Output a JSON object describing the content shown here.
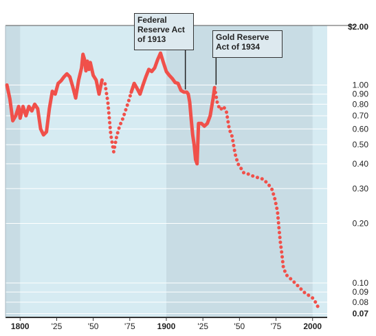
{
  "chart_data": {
    "type": "line",
    "title": "",
    "xlabel": "",
    "ylabel": "",
    "y_scale": "log",
    "x_range": [
      1790,
      2010
    ],
    "y_range": [
      0.067,
      2.0
    ],
    "x_ticks": [
      {
        "value": 1800,
        "label": "1800",
        "major": true
      },
      {
        "value": 1825,
        "label": "'25",
        "major": false
      },
      {
        "value": 1850,
        "label": "'50",
        "major": false
      },
      {
        "value": 1875,
        "label": "'75",
        "major": false
      },
      {
        "value": 1900,
        "label": "1900",
        "major": true
      },
      {
        "value": 1925,
        "label": "'25",
        "major": false
      },
      {
        "value": 1950,
        "label": "'50",
        "major": false
      },
      {
        "value": 1975,
        "label": "'75",
        "major": false
      },
      {
        "value": 2000,
        "label": "2000",
        "major": true
      }
    ],
    "y_ticks": [
      {
        "value": 2.0,
        "label": "$2.00",
        "bold": true
      },
      {
        "value": 1.0,
        "label": "1.00"
      },
      {
        "value": 0.9,
        "label": "0.90"
      },
      {
        "value": 0.8,
        "label": "0.80"
      },
      {
        "value": 0.7,
        "label": "0.70"
      },
      {
        "value": 0.6,
        "label": "0.60"
      },
      {
        "value": 0.5,
        "label": "0.50"
      },
      {
        "value": 0.4,
        "label": "0.40"
      },
      {
        "value": 0.3,
        "label": "0.30"
      },
      {
        "value": 0.2,
        "label": "0.20"
      },
      {
        "value": 0.1,
        "label": "0.10"
      },
      {
        "value": 0.09,
        "label": "0.09"
      },
      {
        "value": 0.08,
        "label": "0.08"
      },
      {
        "value": 0.07,
        "label": "0.07",
        "bold": true
      }
    ],
    "shaded_periods": [
      {
        "start": 1790,
        "end": 1800
      },
      {
        "start": 1900,
        "end": 2000
      }
    ],
    "annotations": [
      {
        "id": "fed",
        "text": "Federal\nReserve Act\nof 1913",
        "year": 1913
      },
      {
        "id": "gold",
        "text": "Gold Reserve\nAct of 1934",
        "year": 1934
      }
    ],
    "colors": {
      "line": "#f0504a",
      "light_bg": "#d6ebf2",
      "shade_bg": "#c8dce4",
      "grid": "#ffffff"
    },
    "series": [
      {
        "style": "solid",
        "points": [
          [
            1791,
            1.0
          ],
          [
            1793,
            0.85
          ],
          [
            1795,
            0.66
          ],
          [
            1797,
            0.7
          ],
          [
            1799,
            0.78
          ],
          [
            1800,
            0.68
          ],
          [
            1802,
            0.78
          ],
          [
            1804,
            0.7
          ],
          [
            1806,
            0.78
          ],
          [
            1808,
            0.74
          ],
          [
            1810,
            0.8
          ],
          [
            1812,
            0.76
          ],
          [
            1814,
            0.6
          ],
          [
            1816,
            0.56
          ],
          [
            1818,
            0.58
          ],
          [
            1820,
            0.76
          ],
          [
            1822,
            0.93
          ],
          [
            1824,
            0.9
          ],
          [
            1826,
            1.02
          ],
          [
            1828,
            1.05
          ],
          [
            1830,
            1.1
          ],
          [
            1832,
            1.14
          ],
          [
            1834,
            1.1
          ],
          [
            1836,
            0.98
          ],
          [
            1838,
            0.86
          ],
          [
            1840,
            1.06
          ],
          [
            1842,
            1.22
          ],
          [
            1843,
            1.43
          ],
          [
            1844,
            1.35
          ],
          [
            1845,
            1.18
          ],
          [
            1846,
            1.32
          ],
          [
            1847,
            1.2
          ],
          [
            1848,
            1.3
          ],
          [
            1850,
            1.12
          ],
          [
            1852,
            1.06
          ],
          [
            1854,
            0.9
          ],
          [
            1856,
            1.06
          ]
        ]
      },
      {
        "style": "dotted",
        "points": [
          [
            1856,
            1.06
          ],
          [
            1858,
            1.02
          ],
          [
            1860,
            0.82
          ],
          [
            1862,
            0.56
          ],
          [
            1864,
            0.46
          ],
          [
            1866,
            0.55
          ],
          [
            1868,
            0.62
          ],
          [
            1870,
            0.67
          ],
          [
            1872,
            0.74
          ],
          [
            1874,
            0.82
          ],
          [
            1876,
            0.92
          ]
        ]
      },
      {
        "style": "solid",
        "points": [
          [
            1876,
            0.92
          ],
          [
            1878,
            1.02
          ],
          [
            1880,
            0.96
          ],
          [
            1882,
            0.9
          ],
          [
            1884,
            1.0
          ],
          [
            1886,
            1.1
          ],
          [
            1888,
            1.2
          ],
          [
            1890,
            1.17
          ],
          [
            1892,
            1.22
          ],
          [
            1894,
            1.34
          ],
          [
            1896,
            1.45
          ],
          [
            1898,
            1.3
          ],
          [
            1900,
            1.17
          ],
          [
            1902,
            1.12
          ],
          [
            1904,
            1.08
          ],
          [
            1906,
            1.03
          ],
          [
            1908,
            1.02
          ],
          [
            1910,
            0.94
          ],
          [
            1912,
            0.92
          ],
          [
            1914,
            0.92
          ],
          [
            1915,
            0.9
          ],
          [
            1916,
            0.82
          ],
          [
            1917,
            0.67
          ],
          [
            1918,
            0.56
          ],
          [
            1919,
            0.5
          ],
          [
            1920,
            0.42
          ],
          [
            1921,
            0.4
          ],
          [
            1922,
            0.64
          ],
          [
            1924,
            0.64
          ],
          [
            1926,
            0.62
          ],
          [
            1928,
            0.64
          ],
          [
            1930,
            0.7
          ],
          [
            1932,
            0.86
          ],
          [
            1933,
            0.97
          ]
        ]
      },
      {
        "style": "dotted",
        "points": [
          [
            1933,
            0.97
          ],
          [
            1935,
            0.8
          ],
          [
            1937,
            0.75
          ],
          [
            1939,
            0.78
          ],
          [
            1941,
            0.74
          ],
          [
            1943,
            0.6
          ],
          [
            1945,
            0.55
          ],
          [
            1947,
            0.45
          ],
          [
            1949,
            0.4
          ],
          [
            1951,
            0.38
          ],
          [
            1953,
            0.36
          ],
          [
            1956,
            0.355
          ],
          [
            1960,
            0.345
          ],
          [
            1963,
            0.34
          ],
          [
            1966,
            0.335
          ],
          [
            1969,
            0.32
          ],
          [
            1972,
            0.3
          ],
          [
            1974,
            0.27
          ],
          [
            1976,
            0.23
          ],
          [
            1977,
            0.19
          ],
          [
            1978,
            0.16
          ],
          [
            1979,
            0.14
          ],
          [
            1980,
            0.12
          ],
          [
            1982,
            0.11
          ],
          [
            1985,
            0.105
          ],
          [
            1988,
            0.1
          ],
          [
            1991,
            0.095
          ],
          [
            1994,
            0.09
          ],
          [
            1997,
            0.087
          ],
          [
            2000,
            0.084
          ],
          [
            2002,
            0.08
          ],
          [
            2004,
            0.075
          ]
        ]
      }
    ]
  }
}
